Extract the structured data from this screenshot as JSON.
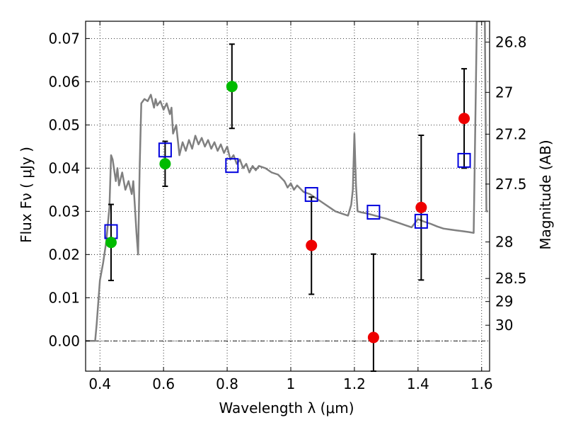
{
  "chart_data": {
    "type": "scatter",
    "xlabel": "Wavelength  λ (μm)",
    "ylabel": "Flux  Fν  ( μJy )",
    "ylabel_right": "Magnitude (AB)",
    "xlim": [
      0.355,
      1.625
    ],
    "ylim": [
      -0.007,
      0.074
    ],
    "x_ticks": [
      0.4,
      0.6,
      0.8,
      1.0,
      1.2,
      1.4,
      1.6
    ],
    "x_tick_labels": [
      "0.4",
      "0.6",
      "0.8",
      "1",
      "1.2",
      "1.4",
      "1.6"
    ],
    "y_ticks": [
      0.0,
      0.01,
      0.02,
      0.03,
      0.04,
      0.05,
      0.06,
      0.07
    ],
    "y_tick_labels": [
      "0.00",
      "0.01",
      "0.02",
      "0.03",
      "0.04",
      "0.05",
      "0.06",
      "0.07"
    ],
    "mag_ticks": [
      26.8,
      27,
      27.2,
      27.5,
      28,
      28.5,
      29,
      30
    ],
    "mag_tick_labels": [
      "26.8",
      "27",
      "27.2",
      "27.5",
      "28",
      "28.5",
      "29",
      "30"
    ],
    "grid": true,
    "colors": {
      "detection_green": "#00bb00",
      "measurement_red": "#ee0000",
      "model_box": "#0000dd",
      "sed_line": "#808080",
      "error_bar": "#000000"
    },
    "series": [
      {
        "name": "green points",
        "marker": "circle",
        "color": "#00bb00",
        "x": [
          0.435,
          0.605,
          0.815
        ],
        "y": [
          0.0228,
          0.041,
          0.0589
        ],
        "yerr_low": [
          0.014,
          0.0358,
          0.0492
        ],
        "yerr_high": [
          0.0316,
          0.0462,
          0.0687
        ]
      },
      {
        "name": "red points",
        "marker": "circle",
        "color": "#ee0000",
        "x": [
          1.065,
          1.26,
          1.41,
          1.545
        ],
        "y": [
          0.0221,
          0.0008,
          0.0309,
          0.0515
        ],
        "yerr_low": [
          0.0108,
          -0.007,
          0.0141,
          0.04
        ],
        "yerr_high": [
          0.0333,
          0.0201,
          0.0476,
          0.063
        ]
      },
      {
        "name": "model photometry",
        "marker": "square",
        "color": "#0000dd",
        "x": [
          0.435,
          0.605,
          0.815,
          1.065,
          1.26,
          1.41,
          1.545
        ],
        "y": [
          0.0253,
          0.0442,
          0.0406,
          0.0339,
          0.0298,
          0.0277,
          0.0418
        ]
      },
      {
        "name": "SED template",
        "marker": "line",
        "color": "#808080",
        "x": [
          0.355,
          0.385,
          0.39,
          0.4,
          0.41,
          0.42,
          0.43,
          0.435,
          0.44,
          0.45,
          0.455,
          0.46,
          0.47,
          0.48,
          0.49,
          0.5,
          0.505,
          0.51,
          0.515,
          0.52,
          0.525,
          0.53,
          0.54,
          0.55,
          0.56,
          0.57,
          0.575,
          0.58,
          0.59,
          0.6,
          0.61,
          0.62,
          0.625,
          0.63,
          0.64,
          0.65,
          0.66,
          0.67,
          0.68,
          0.69,
          0.7,
          0.71,
          0.72,
          0.73,
          0.74,
          0.75,
          0.76,
          0.77,
          0.78,
          0.79,
          0.8,
          0.81,
          0.82,
          0.83,
          0.84,
          0.85,
          0.86,
          0.87,
          0.88,
          0.89,
          0.9,
          0.92,
          0.94,
          0.96,
          0.98,
          0.99,
          1.0,
          1.01,
          1.02,
          1.04,
          1.06,
          1.08,
          1.1,
          1.12,
          1.14,
          1.16,
          1.18,
          1.19,
          1.195,
          1.2,
          1.205,
          1.21,
          1.22,
          1.24,
          1.26,
          1.28,
          1.3,
          1.32,
          1.34,
          1.36,
          1.38,
          1.4,
          1.42,
          1.44,
          1.46,
          1.48,
          1.5,
          1.52,
          1.54,
          1.56,
          1.575,
          1.58,
          1.585,
          1.59,
          1.6,
          1.61,
          1.615,
          1.62
        ],
        "y": [
          0.0,
          0.0,
          0.004,
          0.014,
          0.018,
          0.023,
          0.031,
          0.043,
          0.042,
          0.037,
          0.04,
          0.036,
          0.039,
          0.035,
          0.037,
          0.034,
          0.037,
          0.031,
          0.025,
          0.02,
          0.04,
          0.055,
          0.056,
          0.0555,
          0.057,
          0.054,
          0.056,
          0.0545,
          0.0555,
          0.0535,
          0.055,
          0.0525,
          0.054,
          0.048,
          0.05,
          0.043,
          0.046,
          0.044,
          0.0465,
          0.0445,
          0.0475,
          0.0455,
          0.047,
          0.045,
          0.0465,
          0.0445,
          0.046,
          0.044,
          0.0455,
          0.0435,
          0.045,
          0.042,
          0.043,
          0.041,
          0.042,
          0.04,
          0.041,
          0.039,
          0.0405,
          0.0395,
          0.0405,
          0.04,
          0.039,
          0.0385,
          0.037,
          0.0355,
          0.0365,
          0.035,
          0.036,
          0.0345,
          0.034,
          0.033,
          0.032,
          0.031,
          0.03,
          0.0295,
          0.029,
          0.0315,
          0.035,
          0.048,
          0.036,
          0.03,
          0.0298,
          0.0295,
          0.0291,
          0.0287,
          0.0283,
          0.0278,
          0.0273,
          0.0268,
          0.0263,
          0.0282,
          0.0276,
          0.0271,
          0.0265,
          0.026,
          0.0258,
          0.0256,
          0.0254,
          0.0252,
          0.025,
          0.05,
          0.074,
          0.074,
          0.074,
          0.074,
          0.03,
          0.03
        ]
      }
    ]
  }
}
